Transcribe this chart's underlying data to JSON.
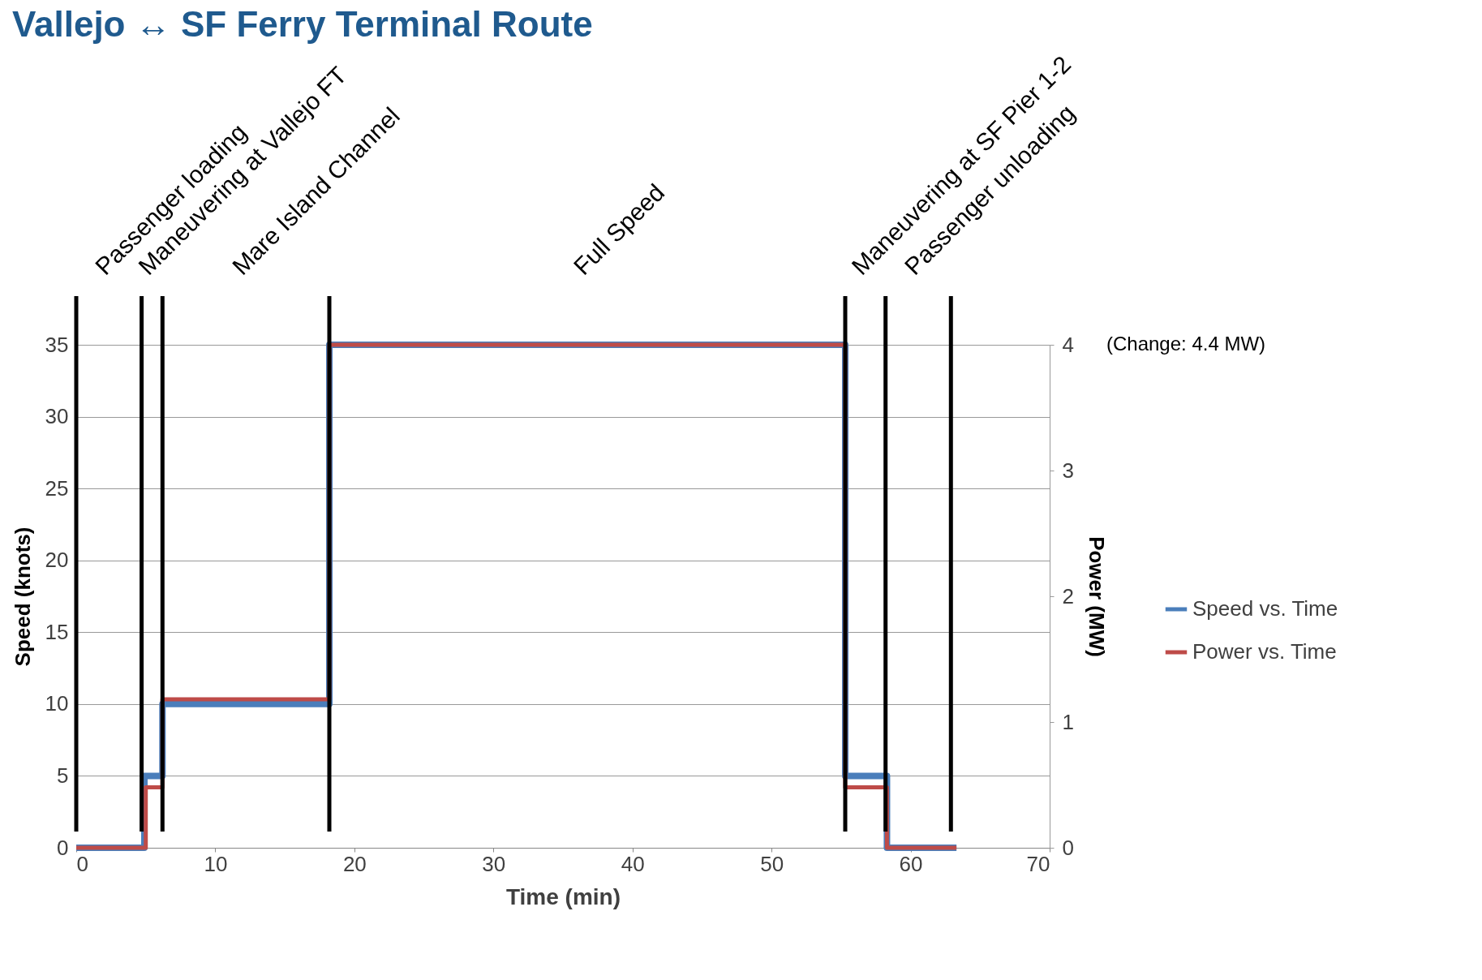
{
  "chart_data": {
    "type": "step",
    "title": "Vallejo ↔ SF Ferry Terminal Route",
    "xlabel": "Time (min)",
    "ylabel": "Speed (knots)",
    "y2label": "Power (MW)",
    "xlim": [
      0,
      70
    ],
    "xticks": [
      0,
      10,
      20,
      30,
      40,
      50,
      60,
      70
    ],
    "ylim": [
      0,
      35
    ],
    "yticks": [
      0,
      5,
      10,
      15,
      20,
      25,
      30,
      35
    ],
    "y2lim": [
      0,
      4
    ],
    "y2ticks": [
      0,
      1,
      2,
      3,
      4
    ],
    "grid": "y",
    "legend": "right",
    "annotations": [
      "Passenger loading",
      "Maneuvering at Vallejo FT",
      "Mare Island Channel",
      "Full Speed",
      "Maneuvering at SF Pier 1-2",
      "Passenger unloading",
      "(Change: 4.4 MW)"
    ],
    "series": [
      {
        "name": "Speed vs. Time",
        "color": "#4a7ebb",
        "x": [
          0,
          4.9,
          6.2,
          18.2,
          55.3,
          58.3,
          63.3
        ],
        "values": [
          0,
          5,
          10,
          35,
          5,
          0,
          0
        ]
      },
      {
        "name": "Power vs. Time",
        "color": "#be4b48",
        "axis": "y2",
        "x": [
          0,
          5.0,
          6.2,
          18.2,
          55.3,
          58.3,
          63.3
        ],
        "values": [
          0,
          0.48,
          1.18,
          4.0,
          0.48,
          0,
          0
        ]
      }
    ],
    "ref_lines": [
      {
        "axis": "x",
        "value": 0
      },
      {
        "axis": "x",
        "value": 4.7
      },
      {
        "axis": "x",
        "value": 6.2
      },
      {
        "axis": "x",
        "value": 18.2
      },
      {
        "axis": "x",
        "value": 55.3
      },
      {
        "axis": "x",
        "value": 58.2
      },
      {
        "axis": "x",
        "value": 62.9
      }
    ]
  }
}
